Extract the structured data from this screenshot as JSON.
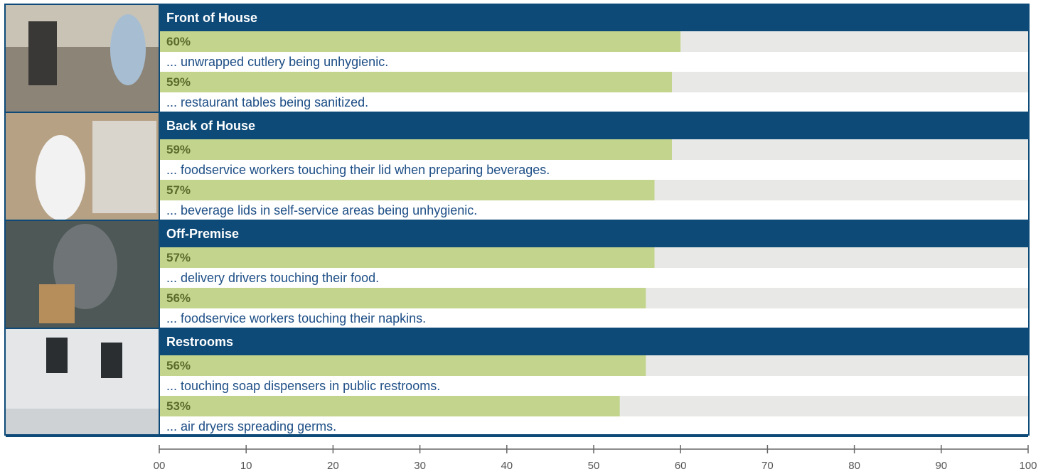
{
  "chart_data": {
    "type": "bar",
    "groups": [
      {
        "name": "Front of House",
        "categories": [
          "... unwrapped cutlery being unhygienic.",
          "... restaurant tables being sanitized."
        ],
        "values": [
          60,
          59
        ],
        "value_labels": [
          "60%",
          "59%"
        ]
      },
      {
        "name": "Back of House",
        "categories": [
          "... foodservice workers touching their lid when preparing beverages.",
          "... beverage lids in self-service areas being unhygienic."
        ],
        "values": [
          59,
          57
        ],
        "value_labels": [
          "59%",
          "57%"
        ]
      },
      {
        "name": "Off-Premise",
        "categories": [
          "... delivery drivers touching their food.",
          "... foodservice workers touching their napkins."
        ],
        "values": [
          57,
          56
        ],
        "value_labels": [
          "57%",
          "56%"
        ]
      },
      {
        "name": "Restrooms",
        "categories": [
          "... touching soap dispensers in public restrooms.",
          "... air dryers spreading germs."
        ],
        "values": [
          56,
          53
        ],
        "value_labels": [
          "56%",
          "53%"
        ]
      }
    ],
    "color": "#c3d48d",
    "xlim": [
      0,
      100
    ],
    "xticks": [
      {
        "value": 0,
        "label": "00"
      },
      10,
      20,
      30,
      40,
      50,
      60,
      70,
      80,
      90,
      100
    ]
  }
}
